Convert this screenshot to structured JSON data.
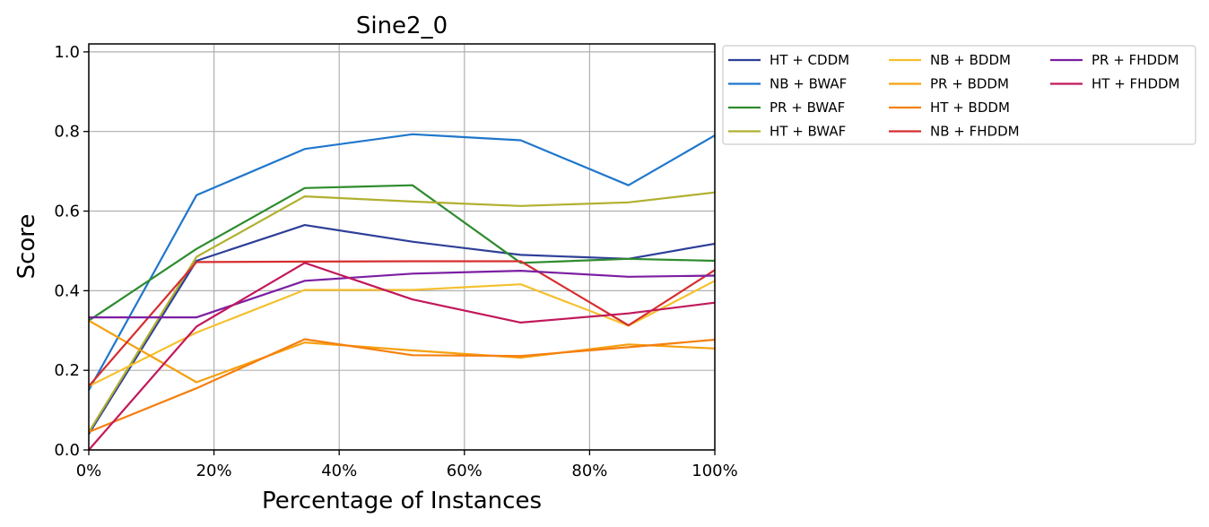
{
  "chart_data": {
    "type": "line",
    "title": "Sine2_0",
    "xlabel": "Percentage of Instances",
    "ylabel": "Score",
    "xlim": [
      0,
      100
    ],
    "ylim": [
      0,
      1.02
    ],
    "x_ticks": [
      0,
      20,
      40,
      60,
      80,
      100
    ],
    "x_tick_labels": [
      "0%",
      "20%",
      "40%",
      "60%",
      "80%",
      "100%"
    ],
    "y_ticks": [
      0.0,
      0.2,
      0.4,
      0.6,
      0.8,
      1.0
    ],
    "y_tick_labels": [
      "0.0",
      "0.2",
      "0.4",
      "0.6",
      "0.8",
      "1.0"
    ],
    "grid": true,
    "legend_placement": "outside-right-top",
    "legend_columns": 3,
    "x": [
      0,
      17.2,
      34.5,
      51.7,
      69.0,
      86.2,
      100
    ],
    "series": [
      {
        "name": "HT + CDDM",
        "color": "#2e3f99",
        "values": [
          0.04,
          0.475,
          0.565,
          0.523,
          0.49,
          0.48,
          0.518
        ]
      },
      {
        "name": "NB + BWAF",
        "color": "#1f77cc",
        "values": [
          0.15,
          0.64,
          0.756,
          0.793,
          0.778,
          0.665,
          0.79
        ]
      },
      {
        "name": "PR + BWAF",
        "color": "#2e8b2e",
        "values": [
          0.325,
          0.505,
          0.658,
          0.665,
          0.47,
          0.48,
          0.475
        ]
      },
      {
        "name": "HT + BWAF",
        "color": "#b0b030",
        "values": [
          0.045,
          0.485,
          0.637,
          0.624,
          0.613,
          0.622,
          0.647
        ]
      },
      {
        "name": "NB + BDDM",
        "color": "#f5c02e",
        "values": [
          0.16,
          0.295,
          0.402,
          0.402,
          0.416,
          0.312,
          0.425
        ]
      },
      {
        "name": "PR + BDDM",
        "color": "#f5a010",
        "values": [
          0.325,
          0.17,
          0.27,
          0.25,
          0.232,
          0.265,
          0.255
        ]
      },
      {
        "name": "HT + BDDM",
        "color": "#f57f0e",
        "values": [
          0.045,
          0.155,
          0.278,
          0.238,
          0.236,
          0.258,
          0.277
        ]
      },
      {
        "name": "NB + FHDDM",
        "color": "#d62f2f",
        "values": [
          0.16,
          0.472,
          0.473,
          0.474,
          0.474,
          0.313,
          0.452
        ]
      },
      {
        "name": "PR + FHDDM",
        "color": "#7b1fa2",
        "values": [
          0.333,
          0.333,
          0.425,
          0.443,
          0.45,
          0.435,
          0.438
        ]
      },
      {
        "name": "HT + FHDDM",
        "color": "#c2185b",
        "values": [
          0.0,
          0.31,
          0.47,
          0.378,
          0.32,
          0.343,
          0.37
        ]
      }
    ]
  }
}
